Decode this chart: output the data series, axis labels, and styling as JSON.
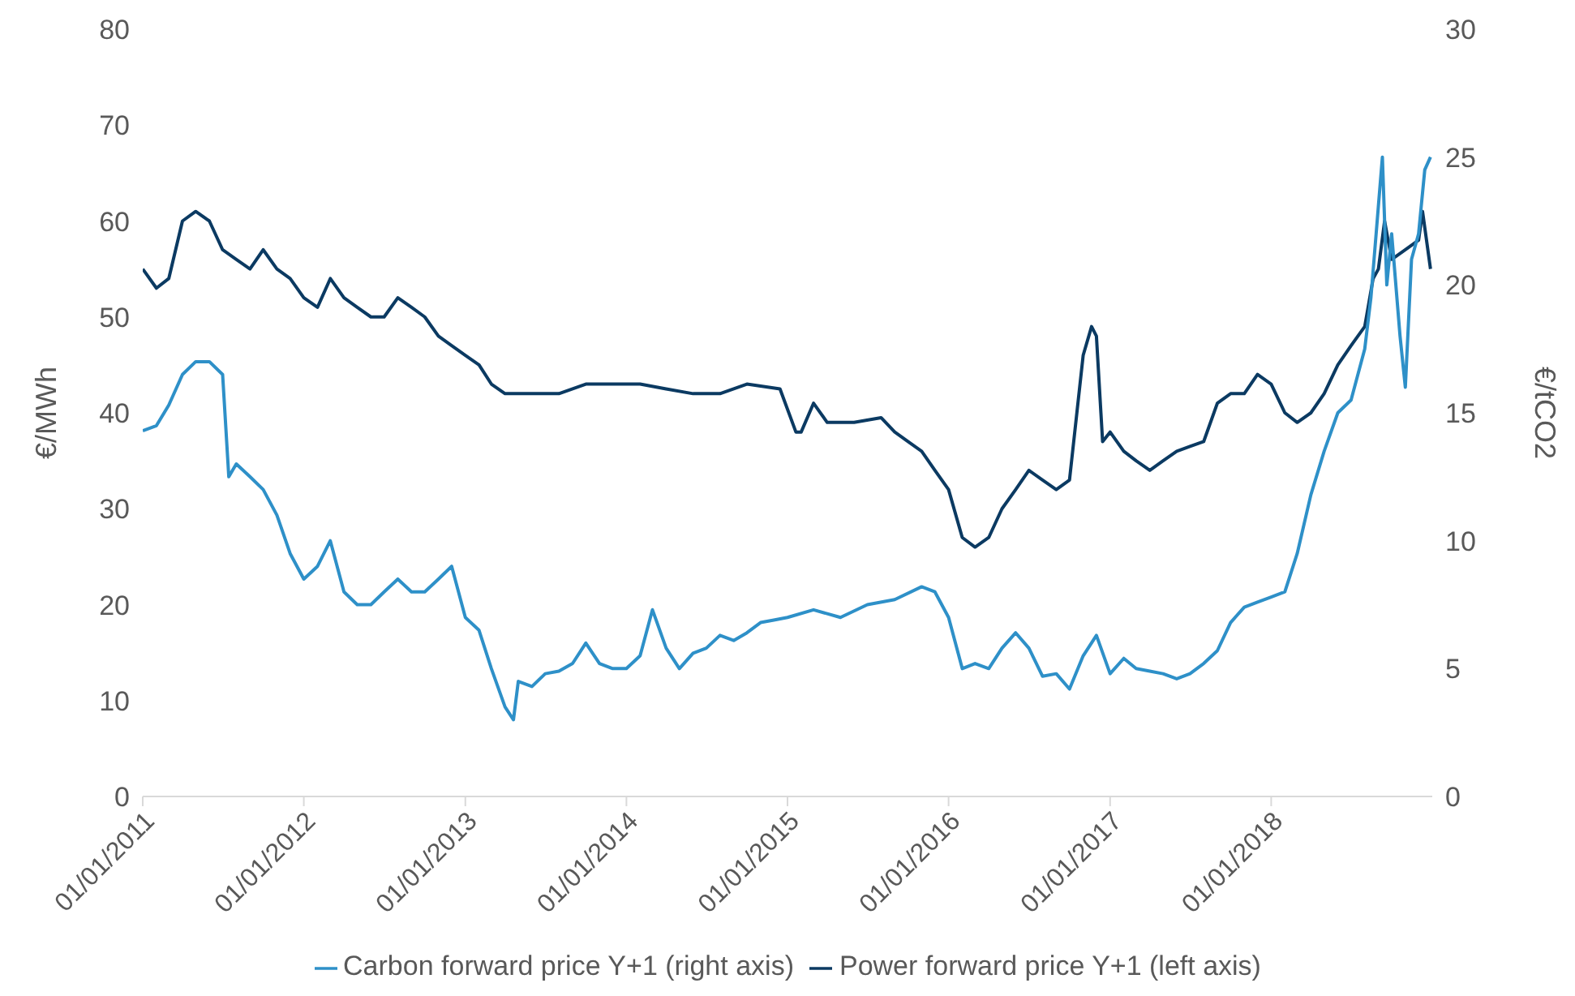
{
  "chart_data": {
    "type": "line",
    "ylabel": "€/MWh",
    "y2label": "€/tCO2",
    "xlim": [
      "2011-01-01",
      "2019-01-01"
    ],
    "xticks": [
      {
        "value": "2011-01-01",
        "label": "01/01/2011"
      },
      {
        "value": "2012-01-01",
        "label": "01/01/2012"
      },
      {
        "value": "2013-01-01",
        "label": "01/01/2013"
      },
      {
        "value": "2014-01-01",
        "label": "01/01/2014"
      },
      {
        "value": "2015-01-01",
        "label": "01/01/2015"
      },
      {
        "value": "2016-01-01",
        "label": "01/01/2016"
      },
      {
        "value": "2017-01-01",
        "label": "01/01/2017"
      },
      {
        "value": "2018-01-01",
        "label": "01/01/2018"
      }
    ],
    "ylim": [
      0,
      80
    ],
    "yticks": [
      0,
      10,
      20,
      30,
      40,
      50,
      60,
      70,
      80
    ],
    "y2lim": [
      0,
      30
    ],
    "y2ticks": [
      0,
      5,
      10,
      15,
      20,
      25,
      30
    ],
    "grid": false,
    "legend": "bottom",
    "marker": "none",
    "line_style": "solid",
    "series": [
      {
        "name": "Power forward price Y+1 (left axis)",
        "color": "#0b3a62",
        "axis": "y",
        "x": [
          "2011-01-01",
          "2011-02-01",
          "2011-03-01",
          "2011-04-01",
          "2011-05-01",
          "2011-06-01",
          "2011-07-01",
          "2011-08-01",
          "2011-09-01",
          "2011-10-01",
          "2011-11-01",
          "2011-12-01",
          "2012-01-01",
          "2012-02-01",
          "2012-03-01",
          "2012-04-01",
          "2012-05-01",
          "2012-06-01",
          "2012-07-01",
          "2012-08-01",
          "2012-09-01",
          "2012-10-01",
          "2012-11-01",
          "2012-12-01",
          "2013-01-01",
          "2013-02-01",
          "2013-03-01",
          "2013-04-01",
          "2013-06-01",
          "2013-08-01",
          "2013-10-01",
          "2013-12-01",
          "2014-02-01",
          "2014-04-01",
          "2014-06-01",
          "2014-08-01",
          "2014-10-01",
          "2014-12-15",
          "2015-01-20",
          "2015-02-01",
          "2015-03-01",
          "2015-04-01",
          "2015-06-01",
          "2015-08-01",
          "2015-09-01",
          "2015-10-01",
          "2015-11-01",
          "2015-12-01",
          "2016-01-01",
          "2016-02-01",
          "2016-03-01",
          "2016-04-01",
          "2016-05-01",
          "2016-06-01",
          "2016-07-01",
          "2016-08-01",
          "2016-09-01",
          "2016-10-01",
          "2016-11-01",
          "2016-11-20",
          "2016-12-01",
          "2016-12-15",
          "2017-01-01",
          "2017-02-01",
          "2017-03-01",
          "2017-04-01",
          "2017-05-01",
          "2017-06-01",
          "2017-07-01",
          "2017-08-01",
          "2017-09-01",
          "2017-10-01",
          "2017-11-01",
          "2017-12-01",
          "2018-01-01",
          "2018-02-01",
          "2018-03-01",
          "2018-04-01",
          "2018-05-01",
          "2018-06-01",
          "2018-07-01",
          "2018-08-01",
          "2018-08-20",
          "2018-09-01",
          "2018-09-15",
          "2018-10-01",
          "2018-11-01",
          "2018-12-01",
          "2018-12-10",
          "2018-12-28"
        ],
        "values": [
          55,
          53,
          54,
          60,
          61,
          60,
          57,
          56,
          55,
          57,
          55,
          54,
          52,
          51,
          54,
          52,
          51,
          50,
          50,
          52,
          51,
          50,
          48,
          47,
          46,
          45,
          43,
          42,
          42,
          42,
          43,
          43,
          43,
          42.5,
          42,
          42,
          43,
          42.5,
          38,
          38,
          41,
          39,
          39,
          39.5,
          38,
          37,
          36,
          34,
          32,
          27,
          26,
          27,
          30,
          32,
          34,
          33,
          32,
          33,
          46,
          49,
          48,
          37,
          38,
          36,
          35,
          34,
          35,
          36,
          36.5,
          37,
          41,
          42,
          42,
          44,
          43,
          40,
          39,
          40,
          42,
          45,
          47,
          49,
          54,
          55,
          60,
          56,
          57,
          58,
          61,
          55
        ]
      },
      {
        "name": "Carbon forward price Y+1 (right axis)",
        "color": "#2e90c8",
        "axis": "y2",
        "x": [
          "2011-01-01",
          "2011-02-01",
          "2011-03-01",
          "2011-04-01",
          "2011-05-01",
          "2011-06-01",
          "2011-07-01",
          "2011-07-15",
          "2011-08-01",
          "2011-09-01",
          "2011-10-01",
          "2011-11-01",
          "2011-12-01",
          "2012-01-01",
          "2012-02-01",
          "2012-03-01",
          "2012-04-01",
          "2012-05-01",
          "2012-06-01",
          "2012-07-01",
          "2012-08-01",
          "2012-09-01",
          "2012-10-01",
          "2012-11-01",
          "2012-12-01",
          "2013-01-01",
          "2013-02-01",
          "2013-03-01",
          "2013-04-01",
          "2013-04-20",
          "2013-05-01",
          "2013-06-01",
          "2013-07-01",
          "2013-08-01",
          "2013-09-01",
          "2013-10-01",
          "2013-11-01",
          "2013-12-01",
          "2014-01-01",
          "2014-02-01",
          "2014-03-01",
          "2014-04-01",
          "2014-05-01",
          "2014-06-01",
          "2014-07-01",
          "2014-08-01",
          "2014-09-01",
          "2014-10-01",
          "2014-11-01",
          "2014-12-01",
          "2015-01-01",
          "2015-03-01",
          "2015-05-01",
          "2015-07-01",
          "2015-09-01",
          "2015-11-01",
          "2015-12-01",
          "2016-01-01",
          "2016-02-01",
          "2016-03-01",
          "2016-04-01",
          "2016-05-01",
          "2016-06-01",
          "2016-07-01",
          "2016-08-01",
          "2016-09-01",
          "2016-10-01",
          "2016-11-01",
          "2016-12-01",
          "2017-01-01",
          "2017-02-01",
          "2017-03-01",
          "2017-04-01",
          "2017-05-01",
          "2017-06-01",
          "2017-07-01",
          "2017-08-01",
          "2017-09-01",
          "2017-10-01",
          "2017-11-01",
          "2017-12-01",
          "2018-01-01",
          "2018-02-01",
          "2018-03-01",
          "2018-04-01",
          "2018-05-01",
          "2018-06-01",
          "2018-07-01",
          "2018-08-01",
          "2018-08-15",
          "2018-09-10",
          "2018-09-20",
          "2018-10-01",
          "2018-10-20",
          "2018-11-01",
          "2018-11-15",
          "2018-12-01",
          "2018-12-15",
          "2018-12-28"
        ],
        "values": [
          14.3,
          14.5,
          15.3,
          16.5,
          17,
          17,
          16.5,
          12.5,
          13,
          12.5,
          12,
          11,
          9.5,
          8.5,
          9,
          10,
          8,
          7.5,
          7.5,
          8,
          8.5,
          8,
          8,
          8.5,
          9,
          7,
          6.5,
          5,
          3.5,
          3,
          4.5,
          4.3,
          4.8,
          4.9,
          5.2,
          6,
          5.2,
          5,
          5,
          5.5,
          7.3,
          5.8,
          5,
          5.6,
          5.8,
          6.3,
          6.1,
          6.4,
          6.8,
          6.9,
          7,
          7.3,
          7,
          7.5,
          7.7,
          8.2,
          8,
          7,
          5,
          5.2,
          5,
          5.8,
          6.4,
          5.8,
          4.7,
          4.8,
          4.2,
          5.5,
          6.3,
          4.8,
          5.4,
          5,
          4.9,
          4.8,
          4.6,
          4.8,
          5.2,
          5.7,
          6.8,
          7.4,
          7.6,
          7.8,
          8,
          9.5,
          11.8,
          13.5,
          15,
          15.5,
          17.5,
          19.5,
          25,
          20,
          22,
          18,
          16,
          21,
          22,
          24.5,
          25
        ]
      }
    ]
  }
}
